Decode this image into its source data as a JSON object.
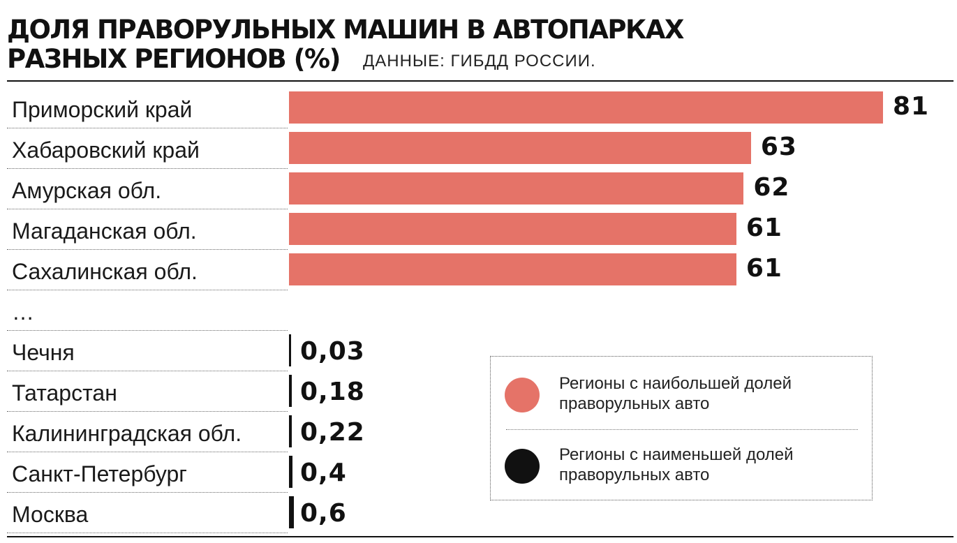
{
  "chart_data": {
    "type": "bar",
    "orientation": "horizontal",
    "title_lines": [
      "ДОЛЯ ПРАВОРУЛЬНЫХ МАШИН В АВТОПАРКАХ",
      "РАЗНЫХ РЕГИОНОВ (%)"
    ],
    "source": "ДАННЫЕ: ГИБДД РОССИИ.",
    "unit": "%",
    "series": [
      {
        "name": "Регионы с наибольшей долей праворульных авто",
        "color": "#e57368",
        "categories": [
          "Приморский край",
          "Хабаровский край",
          "Амурская обл.",
          "Магаданская обл.",
          "Сахалинская обл."
        ],
        "values": [
          81,
          63,
          62,
          61,
          61
        ],
        "value_labels": [
          "81",
          "63",
          "62",
          "61",
          "61"
        ]
      },
      {
        "name": "Регионы с наименьшей долей праворульных авто",
        "color": "#111111",
        "categories": [
          "Чечня",
          "Татарстан",
          "Калининградская обл.",
          "Санкт-Петербург",
          "Москва"
        ],
        "values": [
          0.03,
          0.18,
          0.22,
          0.4,
          0.6
        ],
        "value_labels": [
          "0,03",
          "0,18",
          "0,22",
          "0,4",
          "0,6"
        ]
      }
    ],
    "gap_label": "…",
    "xlim": [
      0,
      81
    ]
  },
  "legend": {
    "items": [
      {
        "label_line1": "Регионы с наибольшей долей",
        "label_line2": "праворульных авто",
        "color": "#e57368"
      },
      {
        "label_line1": "Регионы с наименьшей долей",
        "label_line2": "праворульных авто",
        "color": "#111111"
      }
    ]
  }
}
